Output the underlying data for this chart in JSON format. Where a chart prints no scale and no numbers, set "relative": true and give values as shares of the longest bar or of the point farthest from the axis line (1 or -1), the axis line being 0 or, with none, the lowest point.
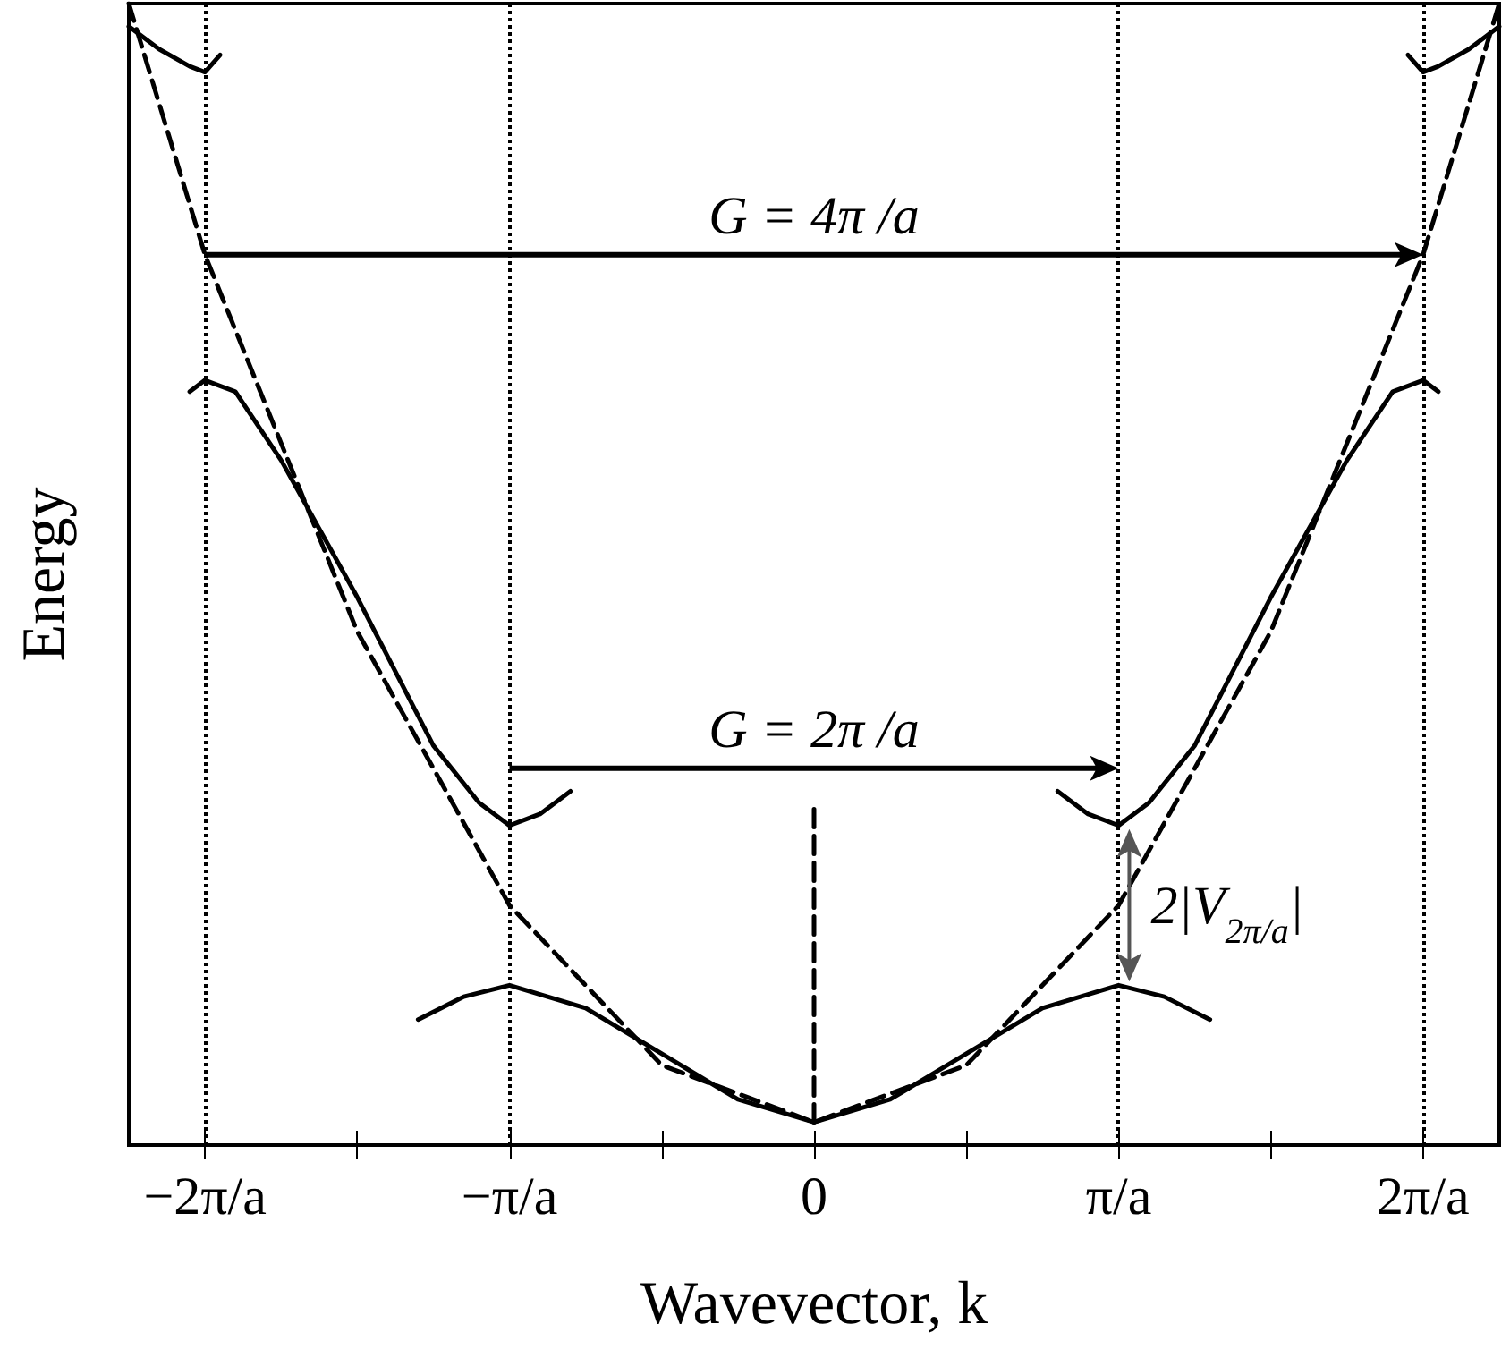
{
  "chart_data": {
    "type": "line",
    "relative": true,
    "xlabel": "Wavevector, k",
    "ylabel": "Energy",
    "xlim": [
      -2.25,
      2.25
    ],
    "xticks": [
      {
        "value": -2,
        "label": "−2π/a"
      },
      {
        "value": -1.5,
        "label": null
      },
      {
        "value": -1,
        "label": "−π/a"
      },
      {
        "value": -0.5,
        "label": null
      },
      {
        "value": 0,
        "label": "0"
      },
      {
        "value": 0.5,
        "label": null
      },
      {
        "value": 1,
        "label": "π/a"
      },
      {
        "value": 1.5,
        "label": null
      },
      {
        "value": 2,
        "label": "2π/a"
      }
    ],
    "marker": "none",
    "series": [
      {
        "color": "#000000",
        "line_style": "dashed",
        "x": [
          -2.25,
          -2,
          -1.5,
          -1,
          -0.5,
          0,
          0.5,
          1,
          1.5,
          2,
          2.25
        ],
        "values": [
          1.0,
          0.78,
          0.45,
          0.21,
          0.07,
          0.02,
          0.07,
          0.21,
          0.45,
          0.78,
          1.0
        ]
      },
      {
        "color": "#000000",
        "line_style": "dashed",
        "x": [
          0,
          0
        ],
        "values": [
          0.02,
          0.3
        ]
      },
      {
        "color": "#000000",
        "line_style": "solid",
        "x": [
          -1.3,
          -1.15,
          -1,
          -0.75,
          -0.5,
          -0.25,
          0,
          0.25,
          0.5,
          0.75,
          1,
          1.15,
          1.3
        ],
        "values": [
          0.11,
          0.13,
          0.14,
          0.12,
          0.08,
          0.04,
          0.02,
          0.04,
          0.08,
          0.12,
          0.14,
          0.13,
          0.11
        ]
      },
      {
        "color": "#000000",
        "line_style": "solid",
        "x": [
          -2.05,
          -2,
          -1.9,
          -1.75,
          -1.5,
          -1.25,
          -1.1,
          -1,
          -0.9,
          -0.8
        ],
        "values": [
          0.66,
          0.67,
          0.66,
          0.6,
          0.48,
          0.35,
          0.3,
          0.28,
          0.29,
          0.31
        ]
      },
      {
        "color": "#000000",
        "line_style": "solid",
        "x": [
          0.8,
          0.9,
          1,
          1.1,
          1.25,
          1.5,
          1.75,
          1.9,
          2,
          2.05
        ],
        "values": [
          0.31,
          0.29,
          0.28,
          0.3,
          0.35,
          0.48,
          0.6,
          0.66,
          0.67,
          0.66
        ]
      },
      {
        "color": "#000000",
        "line_style": "solid",
        "x": [
          -2.25,
          -2.15,
          -2.05,
          -2,
          -1.95
        ],
        "values": [
          0.98,
          0.96,
          0.945,
          0.94,
          0.955
        ]
      },
      {
        "color": "#000000",
        "line_style": "solid",
        "x": [
          1.95,
          2,
          2.05,
          2.15,
          2.25
        ],
        "values": [
          0.955,
          0.94,
          0.945,
          0.96,
          0.98
        ]
      }
    ],
    "ref_lines": [
      {
        "axis": "x",
        "value": -2,
        "color": "#000000",
        "line_style": "dotted"
      },
      {
        "axis": "x",
        "value": -1,
        "color": "#000000",
        "line_style": "dotted"
      },
      {
        "axis": "x",
        "value": 1,
        "color": "#000000",
        "line_style": "dotted"
      },
      {
        "axis": "x",
        "value": 2,
        "color": "#000000",
        "line_style": "dotted"
      }
    ],
    "annotations": [
      "G = 4π /a",
      "G = 2π /a",
      "2|V$_{2π/a}$|"
    ]
  }
}
